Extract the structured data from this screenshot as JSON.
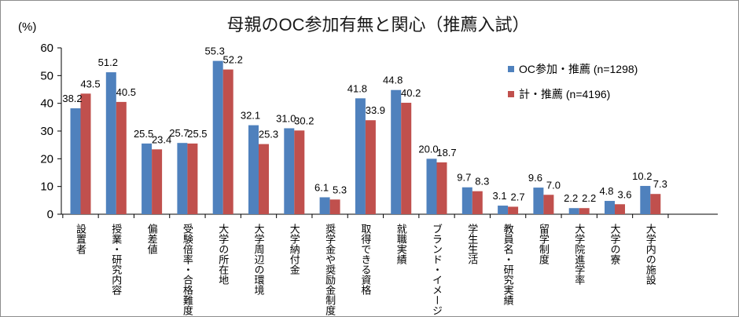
{
  "chart_data": {
    "type": "bar",
    "title": "母親のOC参加有無と関心（推薦入試）",
    "ylabel": "(%)",
    "ylim": [
      0,
      60
    ],
    "yticks": [
      0,
      10,
      20,
      30,
      40,
      50,
      60
    ],
    "grid": false,
    "legend_position": "top-right",
    "categories": [
      "設置者",
      "授業・研究内容",
      "偏差値",
      "受験倍率・合格難度",
      "大学の所在地",
      "大学周辺の環境",
      "大学納付金",
      "奨学金や奨励金制度",
      "取得できる資格",
      "就職実績",
      "ブランド・イメージ",
      "学生生活",
      "教員名・研究実績",
      "留学制度",
      "大学院進学率",
      "大学の寮",
      "大学内の施設"
    ],
    "series": [
      {
        "name": "OC参加・推薦 (n=1298)",
        "color": "#4f81bd",
        "values": [
          38.2,
          51.2,
          25.5,
          25.7,
          55.3,
          32.1,
          31.0,
          6.1,
          41.8,
          44.8,
          20.0,
          9.7,
          3.1,
          9.6,
          2.2,
          4.8,
          10.2
        ]
      },
      {
        "name": "計・推薦 (n=4196)",
        "color": "#c0504d",
        "values": [
          43.5,
          40.5,
          23.4,
          25.5,
          52.2,
          25.3,
          30.2,
          5.3,
          33.9,
          40.2,
          18.7,
          8.3,
          2.7,
          7.0,
          2.2,
          3.6,
          7.3
        ]
      }
    ],
    "data_labels": [
      [
        "38.2",
        "51.2",
        "25.5",
        "25.7",
        "55.3",
        "32.1",
        "31.0",
        "6.1",
        "41.8",
        "44.8",
        "20.0",
        "9.7",
        "3.1",
        "9.6",
        "2.2",
        "4.8",
        "10.2"
      ],
      [
        "43.5",
        "40.5",
        "23.4",
        "25.5",
        "52.2",
        "25.3",
        "30.2",
        "5.3",
        "33.9",
        "40.2",
        "18.7",
        "8.3",
        "2.7",
        "7.0",
        "2.2",
        "3.6",
        "7.3"
      ]
    ]
  }
}
